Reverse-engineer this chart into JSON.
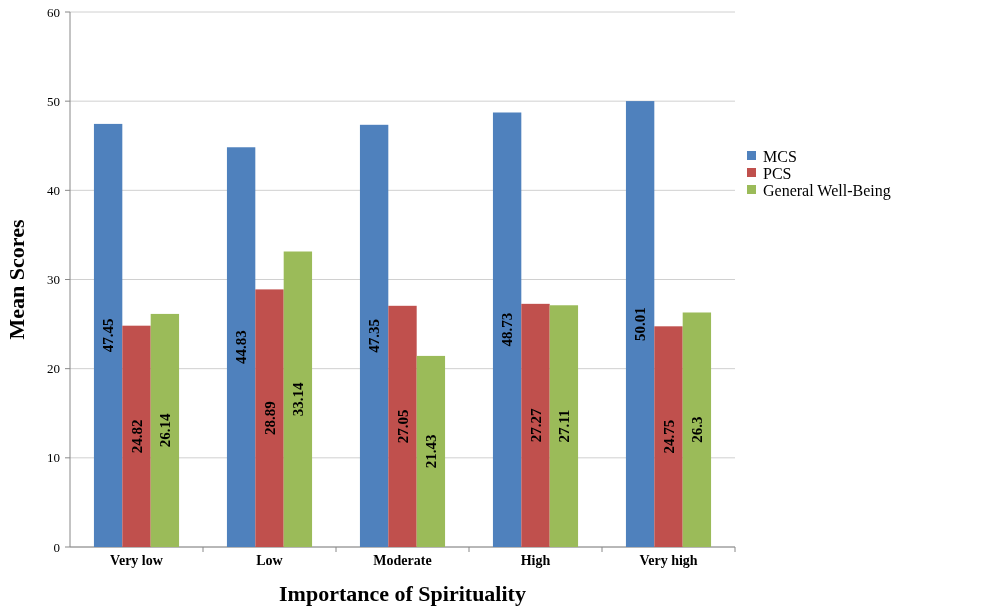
{
  "chart_data": {
    "type": "bar",
    "xlabel": "Importance of Spirituality",
    "ylabel": "Mean Scores",
    "categories": [
      "Very low",
      "Low",
      "Moderate",
      "High",
      "Very high"
    ],
    "series": [
      {
        "name": "MCS",
        "color": "#4f81bd",
        "values": [
          47.45,
          44.83,
          47.35,
          48.73,
          50.01
        ]
      },
      {
        "name": "PCS",
        "color": "#c0504d",
        "values": [
          24.82,
          28.89,
          27.05,
          27.27,
          24.75
        ]
      },
      {
        "name": "General Well-Being",
        "color": "#9bbb59",
        "values": [
          26.14,
          33.14,
          21.43,
          27.11,
          26.3
        ]
      }
    ],
    "ylim": [
      0,
      60
    ],
    "yticks": [
      0,
      10,
      20,
      30,
      40,
      50,
      60
    ],
    "grid": "y",
    "legend": "right",
    "data_labels": true
  }
}
